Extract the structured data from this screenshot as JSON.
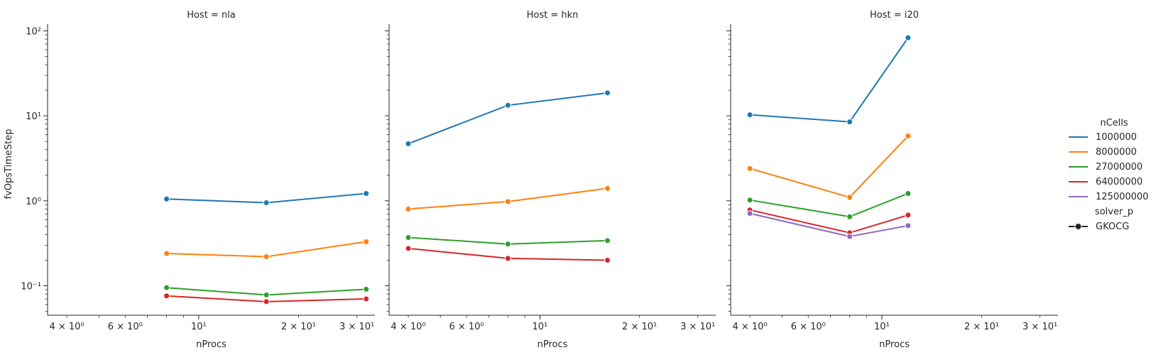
{
  "chart_data": {
    "type": "line",
    "x_scale": "log",
    "y_scale": "log",
    "xlabel": "nProcs",
    "ylabel": "fvOpsTimeStep",
    "xlim": [
      3.5,
      34
    ],
    "ylim": [
      0.045,
      120
    ],
    "x_ticks": [
      {
        "value": 4,
        "label": "4 × 10⁰"
      },
      {
        "value": 6,
        "label": "6 × 10⁰"
      },
      {
        "value": 10,
        "label": "10¹"
      },
      {
        "value": 20,
        "label": "2 × 10¹"
      },
      {
        "value": 30,
        "label": "3 × 10¹"
      }
    ],
    "y_ticks": [
      {
        "value": 0.1,
        "label": "10⁻¹"
      },
      {
        "value": 1,
        "label": "10⁰"
      },
      {
        "value": 10,
        "label": "10¹"
      },
      {
        "value": 100,
        "label": "10²"
      }
    ],
    "grid": false,
    "legend": {
      "placement": "right",
      "hue_title": "nCells",
      "style_title": "solver_p",
      "style_entries": [
        {
          "label": "GKOCG"
        }
      ]
    },
    "series_colors": {
      "1000000": "#1f77b4",
      "8000000": "#ff7f0e",
      "27000000": "#2ca02c",
      "64000000": "#d62728",
      "125000000": "#9467bd"
    },
    "series_order": [
      "1000000",
      "8000000",
      "27000000",
      "64000000",
      "125000000"
    ],
    "panels": [
      {
        "title": "Host = nla",
        "series": [
          {
            "name": "1000000",
            "x": [
              8,
              16,
              32
            ],
            "y": [
              1.05,
              0.95,
              1.22
            ]
          },
          {
            "name": "8000000",
            "x": [
              8,
              16,
              32
            ],
            "y": [
              0.24,
              0.22,
              0.33
            ]
          },
          {
            "name": "27000000",
            "x": [
              8,
              16,
              32
            ],
            "y": [
              0.095,
              0.078,
              0.091
            ]
          },
          {
            "name": "64000000",
            "x": [
              8,
              16,
              32
            ],
            "y": [
              0.076,
              0.065,
              0.07
            ]
          }
        ]
      },
      {
        "title": "Host = hkn",
        "series": [
          {
            "name": "1000000",
            "x": [
              4,
              8,
              16
            ],
            "y": [
              4.7,
              13.3,
              18.6
            ]
          },
          {
            "name": "8000000",
            "x": [
              4,
              8,
              16
            ],
            "y": [
              0.8,
              0.98,
              1.4
            ]
          },
          {
            "name": "27000000",
            "x": [
              4,
              8,
              16
            ],
            "y": [
              0.37,
              0.31,
              0.34
            ]
          },
          {
            "name": "64000000",
            "x": [
              4,
              8,
              16
            ],
            "y": [
              0.275,
              0.21,
              0.2
            ]
          }
        ]
      },
      {
        "title": "Host = i20",
        "series": [
          {
            "name": "1000000",
            "x": [
              4,
              8,
              12
            ],
            "y": [
              10.3,
              8.5,
              83
            ]
          },
          {
            "name": "8000000",
            "x": [
              4,
              8,
              12
            ],
            "y": [
              2.4,
              1.1,
              5.8
            ]
          },
          {
            "name": "27000000",
            "x": [
              4,
              8,
              12
            ],
            "y": [
              1.02,
              0.65,
              1.22
            ]
          },
          {
            "name": "64000000",
            "x": [
              4,
              8,
              12
            ],
            "y": [
              0.78,
              0.42,
              0.68
            ]
          },
          {
            "name": "125000000",
            "x": [
              4,
              8,
              12
            ],
            "y": [
              0.71,
              0.38,
              0.51
            ]
          }
        ]
      }
    ]
  }
}
